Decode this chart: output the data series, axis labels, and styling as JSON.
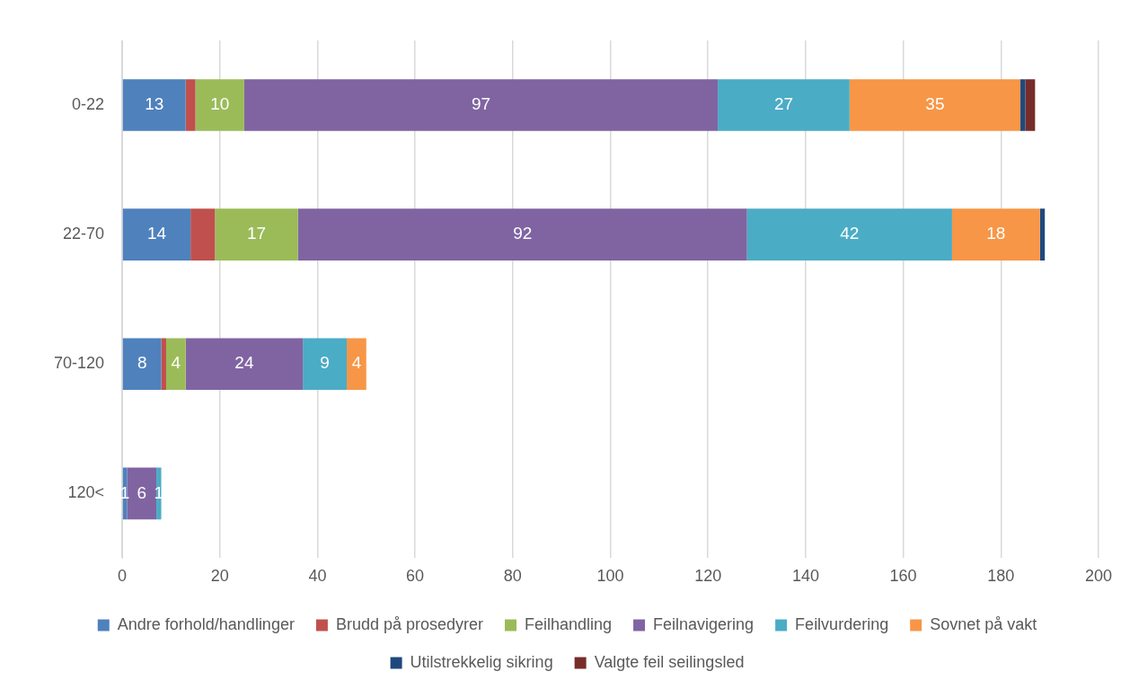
{
  "chart_data": {
    "type": "bar",
    "orientation": "horizontal",
    "stacked": true,
    "categories": [
      "0-22",
      "22-70",
      "70-120",
      "120<"
    ],
    "series": [
      {
        "name": "Andre forhold/handlinger",
        "color": "#4f81bd",
        "values": [
          13,
          14,
          8,
          1
        ],
        "value_labels": [
          "13",
          "14",
          "8",
          "1"
        ]
      },
      {
        "name": "Brudd på prosedyrer",
        "color": "#c0504d",
        "values": [
          2,
          5,
          1,
          0
        ],
        "value_labels": [
          null,
          null,
          null,
          null
        ]
      },
      {
        "name": "Feilhandling",
        "color": "#9bbb59",
        "values": [
          10,
          17,
          4,
          0
        ],
        "value_labels": [
          "10",
          "17",
          "4",
          null
        ]
      },
      {
        "name": "Feilnavigering",
        "color": "#8064a2",
        "values": [
          97,
          92,
          24,
          6
        ],
        "value_labels": [
          "97",
          "92",
          "24",
          "6"
        ]
      },
      {
        "name": "Feilvurdering",
        "color": "#4bacc6",
        "values": [
          27,
          42,
          9,
          1
        ],
        "value_labels": [
          "27",
          "42",
          "9",
          "1"
        ]
      },
      {
        "name": "Sovnet på vakt",
        "color": "#f79646",
        "values": [
          35,
          18,
          4,
          0
        ],
        "value_labels": [
          "35",
          "18",
          "4",
          null
        ]
      },
      {
        "name": "Utilstrekkelig sikring",
        "color": "#1f497d",
        "values": [
          1,
          1,
          0,
          0
        ],
        "value_labels": [
          null,
          null,
          null,
          null
        ]
      },
      {
        "name": "Valgte feil seilingsled",
        "color": "#772c2a",
        "values": [
          2,
          0,
          0,
          0
        ],
        "value_labels": [
          null,
          null,
          null,
          null
        ]
      }
    ],
    "xlim": [
      0,
      200
    ],
    "xticks": [
      0,
      20,
      40,
      60,
      80,
      100,
      120,
      140,
      160,
      180,
      200
    ],
    "grid": "x",
    "legend": "bottom"
  }
}
